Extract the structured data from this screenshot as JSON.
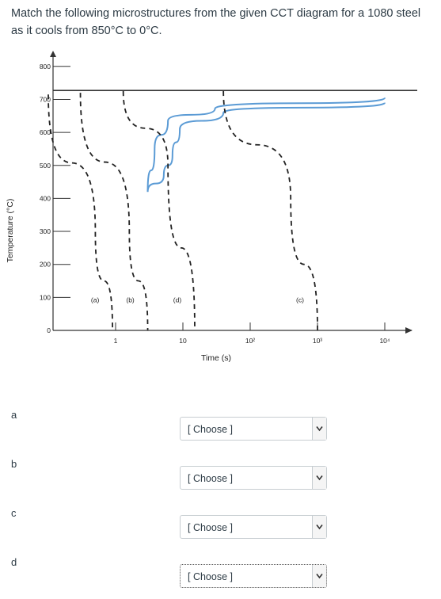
{
  "question": {
    "text": "Match the following microstructures from the given CCT diagram for a 1080 steel as it cools from 850°C to 0°C."
  },
  "chart_data": {
    "type": "line",
    "title": "",
    "xlabel": "Time (s)",
    "ylabel": "Temperature (°C)",
    "x_scale": "log",
    "x_ticks": [
      "1",
      "10",
      "10²",
      "10³",
      "10⁴"
    ],
    "y_ticks": [
      "0",
      "100",
      "200",
      "300",
      "400",
      "500",
      "600",
      "700",
      "800"
    ],
    "ylim": [
      0,
      850
    ],
    "eutectoid_temperature": 727,
    "cooling_paths": [
      {
        "label": "(a)",
        "points": [
          [
            0.1,
            715
          ],
          [
            0.5,
            300
          ],
          [
            0.9,
            0
          ]
        ]
      },
      {
        "label": "(b)",
        "points": [
          [
            0.3,
            720
          ],
          [
            1.6,
            300
          ],
          [
            3,
            0
          ]
        ]
      },
      {
        "label": "(d)",
        "points": [
          [
            1.3,
            725
          ],
          [
            6,
            500
          ],
          [
            15,
            0
          ]
        ]
      },
      {
        "label": "(c)",
        "points": [
          [
            40,
            725
          ],
          [
            400,
            400
          ],
          [
            1000,
            0
          ]
        ]
      }
    ],
    "transformation_curves": [
      {
        "name": "start",
        "points": [
          [
            3,
            420
          ],
          [
            3.8,
            550
          ],
          [
            6,
            635
          ],
          [
            30,
            672
          ],
          [
            10000,
            705
          ]
        ]
      },
      {
        "name": "finish",
        "points": [
          [
            3,
            420
          ],
          [
            5.2,
            470
          ],
          [
            7,
            530
          ],
          [
            9,
            610
          ],
          [
            40,
            660
          ],
          [
            10000,
            690
          ]
        ]
      }
    ]
  },
  "rows": [
    {
      "letter": "a",
      "select_value": "[ Choose ]"
    },
    {
      "letter": "b",
      "select_value": "[ Choose ]"
    },
    {
      "letter": "c",
      "select_value": "[ Choose ]"
    },
    {
      "letter": "d",
      "select_value": "[ Choose ]"
    }
  ]
}
